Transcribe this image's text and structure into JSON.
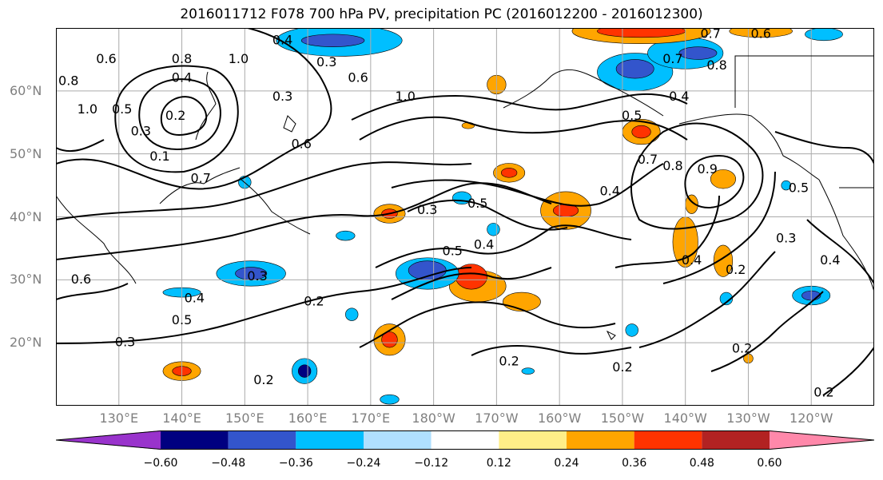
{
  "title": "2016011712 F078 700 hPa PV, precipitation PC (2016012200 - 2016012300)",
  "axes": {
    "lat_ticks": [
      "60°N",
      "50°N",
      "40°N",
      "30°N",
      "20°N"
    ],
    "lon_ticks": [
      "130°E",
      "140°E",
      "150°E",
      "160°E",
      "170°E",
      "180°W",
      "170°W",
      "160°W",
      "150°W",
      "140°W",
      "130°W",
      "120°W"
    ]
  },
  "colorbar": {
    "labels": [
      "−0.60",
      "−0.48",
      "−0.36",
      "−0.24",
      "−0.12",
      "0.12",
      "0.24",
      "0.36",
      "0.48",
      "0.60"
    ],
    "colors": [
      "#9933cc",
      "#000080",
      "#3355cc",
      "#00bfff",
      "#b0e0ff",
      "#ffffff",
      "#ffee88",
      "#ffa500",
      "#ff3300",
      "#b22222",
      "#ff88aa"
    ]
  },
  "contour_labels": [
    {
      "text": "0.6",
      "lon": 128,
      "lat": 65
    },
    {
      "text": "0.8",
      "lon": 122,
      "lat": 61.5
    },
    {
      "text": "1.0",
      "lon": 125,
      "lat": 57
    },
    {
      "text": "0.5",
      "lon": 130.5,
      "lat": 57
    },
    {
      "text": "0.8",
      "lon": 140,
      "lat": 65
    },
    {
      "text": "0.4",
      "lon": 140,
      "lat": 62
    },
    {
      "text": "0.2",
      "lon": 139,
      "lat": 56
    },
    {
      "text": "0.3",
      "lon": 133.5,
      "lat": 53.5
    },
    {
      "text": "0.1",
      "lon": 136.5,
      "lat": 49.5
    },
    {
      "text": "0.7",
      "lon": 143,
      "lat": 46
    },
    {
      "text": "1.0",
      "lon": 149,
      "lat": 65
    },
    {
      "text": "0.4",
      "lon": 156,
      "lat": 68
    },
    {
      "text": "0.3",
      "lon": 163,
      "lat": 64.5
    },
    {
      "text": "0.3",
      "lon": 156,
      "lat": 59
    },
    {
      "text": "0.6",
      "lon": 168,
      "lat": 62
    },
    {
      "text": "1.0",
      "lon": 175.5,
      "lat": 59
    },
    {
      "text": "0.6",
      "lon": 159,
      "lat": 51.5
    },
    {
      "text": "0.3",
      "lon": 179,
      "lat": 41
    },
    {
      "text": "0.5",
      "lon": -173,
      "lat": 42
    },
    {
      "text": "0.5",
      "lon": -177,
      "lat": 34.5
    },
    {
      "text": "0.4",
      "lon": -172,
      "lat": 35.5
    },
    {
      "text": "0.3",
      "lon": 152,
      "lat": 30.5
    },
    {
      "text": "0.4",
      "lon": 142,
      "lat": 27
    },
    {
      "text": "0.5",
      "lon": 140,
      "lat": 23.5
    },
    {
      "text": "0.3",
      "lon": 131,
      "lat": 20
    },
    {
      "text": "0.6",
      "lon": 124,
      "lat": 30
    },
    {
      "text": "0.2",
      "lon": 161,
      "lat": 26.5
    },
    {
      "text": "0.2",
      "lon": 153,
      "lat": 14
    },
    {
      "text": "0.2",
      "lon": -168,
      "lat": 17
    },
    {
      "text": "0.4",
      "lon": -141,
      "lat": 59
    },
    {
      "text": "0.5",
      "lon": -148.5,
      "lat": 56
    },
    {
      "text": "0.7",
      "lon": -142,
      "lat": 65
    },
    {
      "text": "0.8",
      "lon": -135,
      "lat": 64
    },
    {
      "text": "0.7",
      "lon": -136,
      "lat": 69
    },
    {
      "text": "0.6",
      "lon": -128,
      "lat": 69
    },
    {
      "text": "0.7",
      "lon": -146,
      "lat": 49
    },
    {
      "text": "0.8",
      "lon": -142,
      "lat": 48
    },
    {
      "text": "0.9",
      "lon": -136.5,
      "lat": 47.5
    },
    {
      "text": "0.4",
      "lon": -152,
      "lat": 44
    },
    {
      "text": "0.4",
      "lon": -139,
      "lat": 33
    },
    {
      "text": "0.2",
      "lon": -132,
      "lat": 31.5
    },
    {
      "text": "0.3",
      "lon": -124,
      "lat": 36.5
    },
    {
      "text": "0.4",
      "lon": -117,
      "lat": 33
    },
    {
      "text": "0.5",
      "lon": -122,
      "lat": 44.5
    },
    {
      "text": "0.2",
      "lon": -150,
      "lat": 16
    },
    {
      "text": "0.2",
      "lon": -131,
      "lat": 19
    },
    {
      "text": "0.2",
      "lon": -118,
      "lat": 12
    }
  ],
  "precip_blobs": [
    {
      "lon": -148,
      "lat": 63,
      "rx": 12,
      "ry": 6,
      "c": "#00bfff"
    },
    {
      "lon": -148,
      "lat": 63.5,
      "rx": 6,
      "ry": 3,
      "c": "#3355cc"
    },
    {
      "lon": -140,
      "lat": 66,
      "rx": 12,
      "ry": 5,
      "c": "#00bfff"
    },
    {
      "lon": -138,
      "lat": 66,
      "rx": 6,
      "ry": 2,
      "c": "#3355cc"
    },
    {
      "lon": -147,
      "lat": 69.5,
      "rx": 22,
      "ry": 4,
      "c": "#ffa500"
    },
    {
      "lon": -147,
      "lat": 69.5,
      "rx": 14,
      "ry": 2,
      "c": "#ff3300"
    },
    {
      "lon": -128,
      "lat": 69.5,
      "rx": 10,
      "ry": 2,
      "c": "#ffa500"
    },
    {
      "lon": 165,
      "lat": 68,
      "rx": 20,
      "ry": 5,
      "c": "#00bfff"
    },
    {
      "lon": 164,
      "lat": 68,
      "rx": 10,
      "ry": 2,
      "c": "#3355cc"
    },
    {
      "lon": -118,
      "lat": 69,
      "rx": 6,
      "ry": 2,
      "c": "#00bfff"
    },
    {
      "lon": -147,
      "lat": 53.5,
      "rx": 6,
      "ry": 4,
      "c": "#ffa500"
    },
    {
      "lon": -147,
      "lat": 53.5,
      "rx": 3,
      "ry": 2,
      "c": "#ff3300"
    },
    {
      "lon": -170,
      "lat": 61,
      "rx": 3,
      "ry": 3,
      "c": "#ffa500"
    },
    {
      "lon": -174.5,
      "lat": 54.5,
      "rx": 2,
      "ry": 1,
      "c": "#ffa500"
    },
    {
      "lon": -168,
      "lat": 47,
      "rx": 5,
      "ry": 3,
      "c": "#ffa500"
    },
    {
      "lon": -168,
      "lat": 47,
      "rx": 2.5,
      "ry": 1.5,
      "c": "#ff3300"
    },
    {
      "lon": -134,
      "lat": 46,
      "rx": 4,
      "ry": 3,
      "c": "#ffa500"
    },
    {
      "lon": -159,
      "lat": 41,
      "rx": 8,
      "ry": 6,
      "c": "#ffa500"
    },
    {
      "lon": -159,
      "lat": 41,
      "rx": 4,
      "ry": 2,
      "c": "#ff3300"
    },
    {
      "lon": -140,
      "lat": 36,
      "rx": 4,
      "ry": 8,
      "c": "#ffa500"
    },
    {
      "lon": -134,
      "lat": 33,
      "rx": 3,
      "ry": 5,
      "c": "#ffa500"
    },
    {
      "lon": -139,
      "lat": 42,
      "rx": 2,
      "ry": 3,
      "c": "#ffa500"
    },
    {
      "lon": 173,
      "lat": 40.5,
      "rx": 5,
      "ry": 3,
      "c": "#ffa500"
    },
    {
      "lon": 173,
      "lat": 40.5,
      "rx": 2.5,
      "ry": 1.5,
      "c": "#ff3300"
    },
    {
      "lon": -173,
      "lat": 29,
      "rx": 9,
      "ry": 5,
      "c": "#ffa500"
    },
    {
      "lon": -174,
      "lat": 30.5,
      "rx": 5,
      "ry": 4,
      "c": "#ff3300"
    },
    {
      "lon": -166,
      "lat": 26.5,
      "rx": 6,
      "ry": 3,
      "c": "#ffa500"
    },
    {
      "lon": 173,
      "lat": 20.5,
      "rx": 5,
      "ry": 5,
      "c": "#ffa500"
    },
    {
      "lon": 173,
      "lat": 20.5,
      "rx": 2.5,
      "ry": 2.5,
      "c": "#ff3300"
    },
    {
      "lon": 140,
      "lat": 15.5,
      "rx": 6,
      "ry": 3,
      "c": "#ffa500"
    },
    {
      "lon": 140,
      "lat": 15.5,
      "rx": 3,
      "ry": 1.5,
      "c": "#ff3300"
    },
    {
      "lon": -130,
      "lat": 17.5,
      "rx": 1.5,
      "ry": 1.5,
      "c": "#ffa500"
    },
    {
      "lon": 179,
      "lat": 31,
      "rx": 10,
      "ry": 5,
      "c": "#00bfff"
    },
    {
      "lon": 179,
      "lat": 31.5,
      "rx": 6,
      "ry": 3,
      "c": "#3355cc"
    },
    {
      "lon": 151,
      "lat": 31,
      "rx": 11,
      "ry": 4,
      "c": "#00bfff"
    },
    {
      "lon": 151,
      "lat": 31,
      "rx": 5,
      "ry": 2,
      "c": "#3355cc"
    },
    {
      "lon": 140,
      "lat": 28,
      "rx": 6,
      "ry": 1.5,
      "c": "#00bfff"
    },
    {
      "lon": -175.5,
      "lat": 43,
      "rx": 3,
      "ry": 2,
      "c": "#00bfff"
    },
    {
      "lon": -170.5,
      "lat": 38,
      "rx": 2,
      "ry": 2,
      "c": "#00bfff"
    },
    {
      "lon": 166,
      "lat": 37,
      "rx": 3,
      "ry": 1.5,
      "c": "#00bfff"
    },
    {
      "lon": 167,
      "lat": 24.5,
      "rx": 2,
      "ry": 2,
      "c": "#00bfff"
    },
    {
      "lon": 159.5,
      "lat": 15.5,
      "rx": 4,
      "ry": 4,
      "c": "#00bfff"
    },
    {
      "lon": 159.5,
      "lat": 15.5,
      "rx": 2,
      "ry": 2,
      "c": "#000080"
    },
    {
      "lon": 150,
      "lat": 45.5,
      "rx": 2,
      "ry": 2,
      "c": "#00bfff"
    },
    {
      "lon": -165,
      "lat": 15.5,
      "rx": 2,
      "ry": 1,
      "c": "#00bfff"
    },
    {
      "lon": -148.5,
      "lat": 22,
      "rx": 2,
      "ry": 2,
      "c": "#00bfff"
    },
    {
      "lon": -133.5,
      "lat": 27,
      "rx": 2,
      "ry": 2,
      "c": "#00bfff"
    },
    {
      "lon": -120,
      "lat": 27.5,
      "rx": 6,
      "ry": 3,
      "c": "#00bfff"
    },
    {
      "lon": -120,
      "lat": 27.5,
      "rx": 3,
      "ry": 1.5,
      "c": "#3355cc"
    },
    {
      "lon": 173,
      "lat": 11,
      "rx": 3,
      "ry": 1.5,
      "c": "#00bfff"
    },
    {
      "lon": -124,
      "lat": 45,
      "rx": 1.5,
      "ry": 1.5,
      "c": "#00bfff"
    }
  ]
}
